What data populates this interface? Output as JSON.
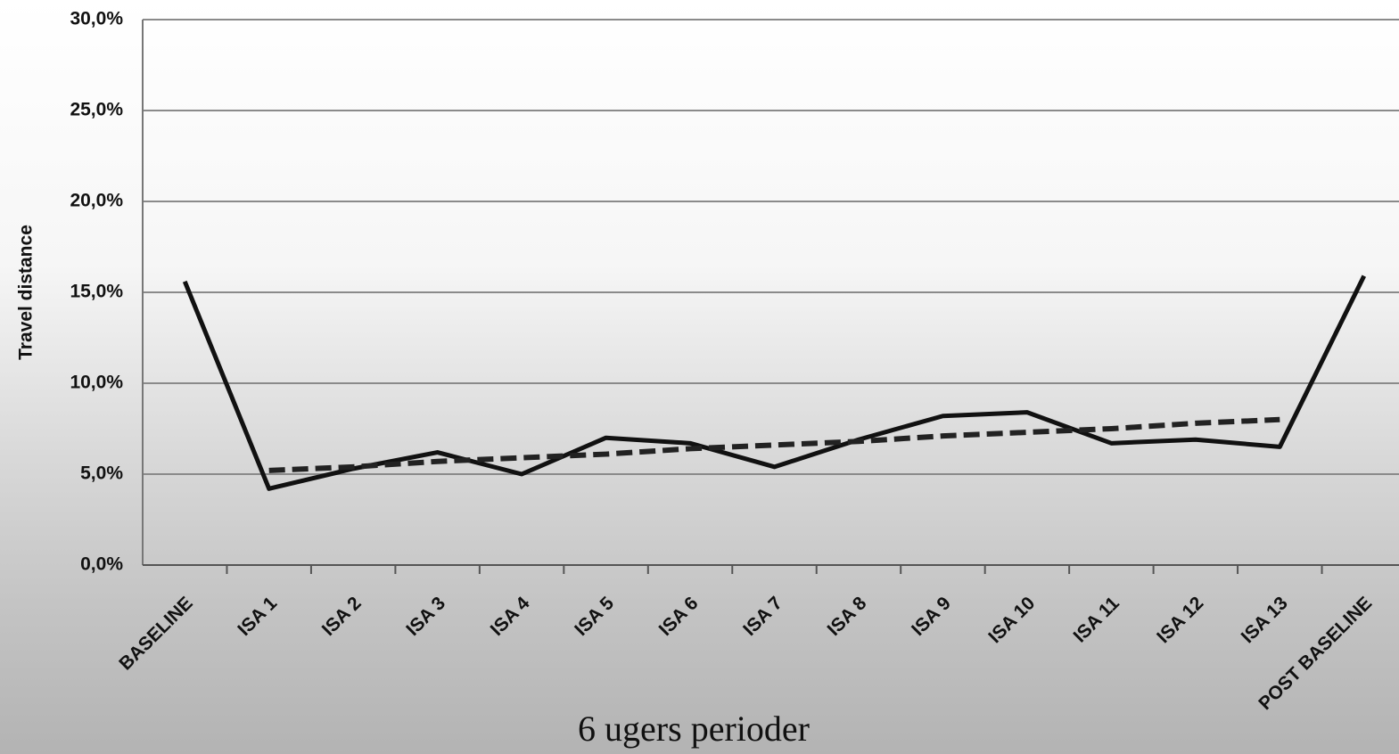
{
  "chart_data": {
    "type": "line",
    "y_label": "Travel distance",
    "x_label": "6 ugers perioder",
    "categories": [
      "BASELINE",
      "ISA 1",
      "ISA 2",
      "ISA 3",
      "ISA 4",
      "ISA 5",
      "ISA 6",
      "ISA 7",
      "ISA 8",
      "ISA 9",
      "ISA 10",
      "ISA 11",
      "ISA 12",
      "ISA 13",
      "POST BASELINE"
    ],
    "series": [
      {
        "color": "#111111",
        "dashed": false,
        "values": [
          15.6,
          4.2,
          5.3,
          6.2,
          5.0,
          7.0,
          6.7,
          5.4,
          6.9,
          8.2,
          8.4,
          6.7,
          6.9,
          6.5,
          15.9
        ]
      },
      {
        "color": "#222222",
        "dashed": true,
        "values": [
          null,
          5.2,
          5.4,
          5.7,
          5.9,
          6.1,
          6.4,
          6.6,
          6.8,
          7.1,
          7.3,
          7.5,
          7.8,
          8.0,
          null
        ]
      }
    ],
    "ylim": [
      0,
      30
    ],
    "yticks": [
      {
        "value": 0,
        "label": "0,0%"
      },
      {
        "value": 5,
        "label": "5,0%"
      },
      {
        "value": 10,
        "label": "10,0%"
      },
      {
        "value": 15,
        "label": "15,0%"
      },
      {
        "value": 20,
        "label": "20,0%"
      },
      {
        "value": 25,
        "label": "25,0%"
      },
      {
        "value": 30,
        "label": "30,0%"
      }
    ],
    "grid": true
  }
}
